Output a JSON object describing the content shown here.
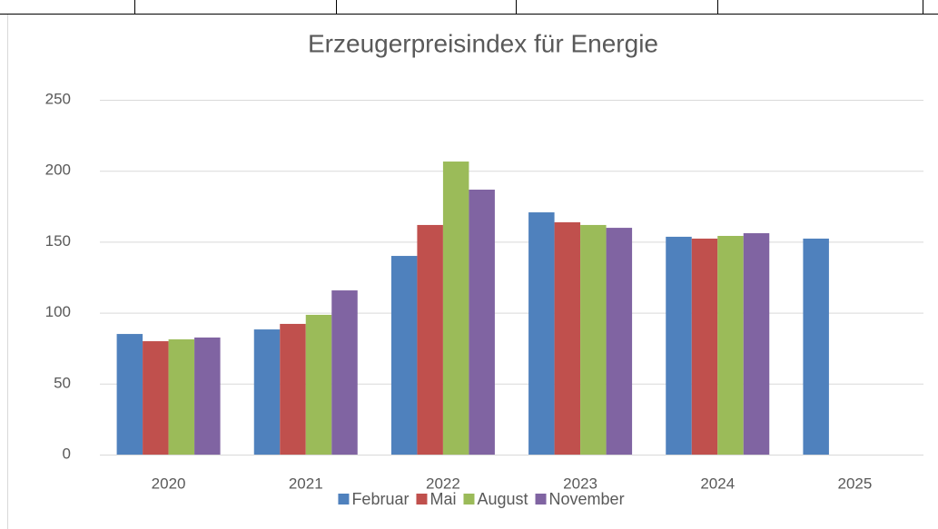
{
  "chart_data": {
    "type": "bar",
    "title": "Erzeugerpreisindex für Energie",
    "categories": [
      "2020",
      "2021",
      "2022",
      "2023",
      "2024",
      "2025"
    ],
    "series": [
      {
        "name": "Februar",
        "color": "#4f81bd",
        "values": [
          85.0,
          88.2,
          140.0,
          170.7,
          153.5,
          152.2
        ]
      },
      {
        "name": "Mai",
        "color": "#c0504d",
        "values": [
          79.9,
          92.1,
          161.8,
          163.7,
          152.2,
          null
        ]
      },
      {
        "name": "August",
        "color": "#9bbb59",
        "values": [
          81.2,
          98.5,
          206.5,
          161.8,
          154.1,
          null
        ]
      },
      {
        "name": "November",
        "color": "#8064a2",
        "values": [
          82.5,
          115.7,
          186.7,
          159.8,
          156.0,
          null
        ]
      }
    ],
    "ylim": [
      0,
      250
    ],
    "yticks": [
      0,
      50,
      100,
      150,
      200,
      250
    ],
    "grid": true,
    "legend": "bottom"
  }
}
